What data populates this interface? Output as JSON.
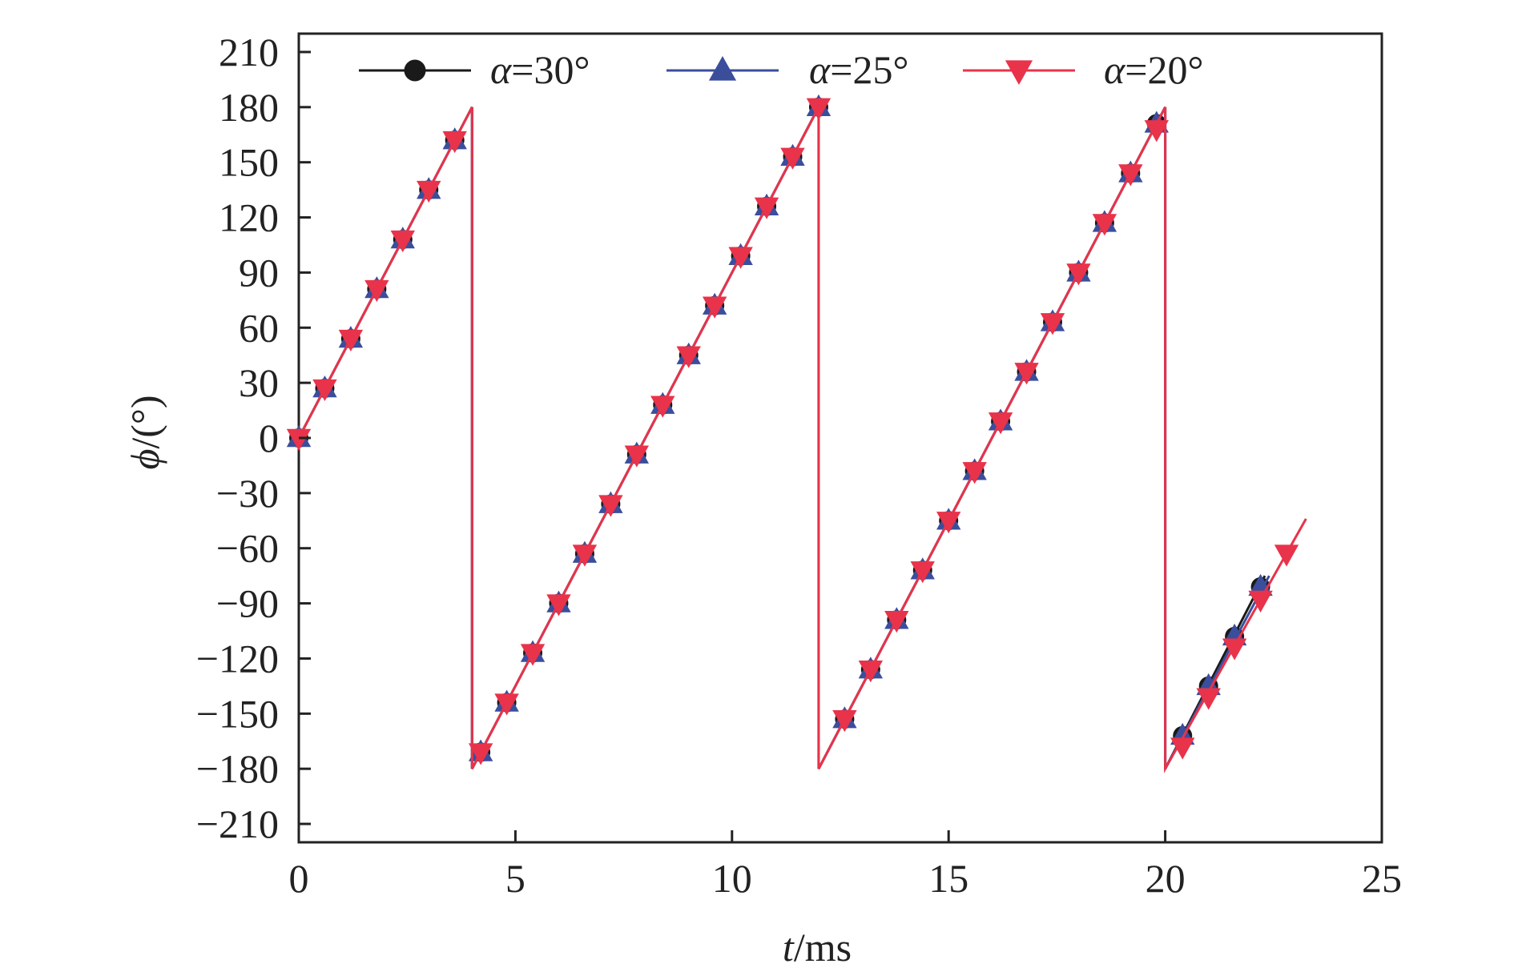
{
  "chart_data": {
    "type": "line",
    "title": "",
    "xlabel": {
      "var": "t",
      "unit": "/ms"
    },
    "ylabel": {
      "var": "ϕ",
      "unit": "/(°)"
    },
    "xlim": [
      0,
      25
    ],
    "ylim": [
      -220,
      220
    ],
    "xticks": [
      0,
      5,
      10,
      15,
      20,
      25
    ],
    "yticks": [
      210,
      180,
      150,
      120,
      90,
      60,
      30,
      0,
      -30,
      -60,
      -90,
      -120,
      -150,
      -180,
      -210
    ],
    "grid": false,
    "legend_position": "top",
    "series": [
      {
        "name": "α=30°",
        "name_var": "α",
        "name_rest": "=30°",
        "color": "#1a1a1a",
        "marker": "circle",
        "line": [
          [
            0,
            0
          ],
          [
            4.0,
            180
          ],
          [
            4.0,
            -180
          ],
          [
            12.0,
            180
          ],
          [
            12.0,
            -180
          ],
          [
            20.0,
            180
          ],
          [
            20.0,
            -180
          ],
          [
            22.3,
            -75
          ]
        ],
        "markers": [
          [
            0,
            0
          ],
          [
            0.6,
            27
          ],
          [
            1.2,
            54
          ],
          [
            1.8,
            81
          ],
          [
            2.4,
            108
          ],
          [
            3.0,
            135
          ],
          [
            3.6,
            162
          ],
          [
            4.2,
            -171
          ],
          [
            4.8,
            -144
          ],
          [
            5.4,
            -117
          ],
          [
            6.0,
            -90
          ],
          [
            6.6,
            -63
          ],
          [
            7.2,
            -36
          ],
          [
            7.8,
            -9
          ],
          [
            8.4,
            18
          ],
          [
            9.0,
            45
          ],
          [
            9.6,
            72
          ],
          [
            10.2,
            99
          ],
          [
            10.8,
            126
          ],
          [
            11.4,
            153
          ],
          [
            12.0,
            180
          ],
          [
            12.6,
            -153
          ],
          [
            13.2,
            -126
          ],
          [
            13.8,
            -99
          ],
          [
            14.4,
            -72
          ],
          [
            15.0,
            -45
          ],
          [
            15.6,
            -18
          ],
          [
            16.2,
            9
          ],
          [
            16.8,
            36
          ],
          [
            17.4,
            63
          ],
          [
            18.0,
            90
          ],
          [
            18.6,
            117
          ],
          [
            19.2,
            144
          ],
          [
            19.8,
            171
          ],
          [
            20.4,
            -162
          ],
          [
            21.0,
            -135
          ],
          [
            21.6,
            -108
          ],
          [
            22.2,
            -81
          ]
        ]
      },
      {
        "name": "α=25°",
        "name_var": "α",
        "name_rest": "=25°",
        "color": "#3a4e9c",
        "marker": "triangle-up",
        "line": [
          [
            0,
            0
          ],
          [
            4.0,
            180
          ],
          [
            4.0,
            -180
          ],
          [
            12.0,
            180
          ],
          [
            12.0,
            -180
          ],
          [
            20.0,
            180
          ],
          [
            20.0,
            -180
          ],
          [
            22.4,
            -75
          ]
        ],
        "markers": [
          [
            0,
            0
          ],
          [
            0.6,
            27
          ],
          [
            1.2,
            54
          ],
          [
            1.8,
            81
          ],
          [
            2.4,
            108
          ],
          [
            3.0,
            135
          ],
          [
            3.6,
            162
          ],
          [
            4.2,
            -171
          ],
          [
            4.8,
            -144
          ],
          [
            5.4,
            -117
          ],
          [
            6.0,
            -90
          ],
          [
            6.6,
            -63
          ],
          [
            7.2,
            -36
          ],
          [
            7.8,
            -9
          ],
          [
            8.4,
            18
          ],
          [
            9.0,
            45
          ],
          [
            9.6,
            72
          ],
          [
            10.2,
            99
          ],
          [
            10.8,
            126
          ],
          [
            11.4,
            153
          ],
          [
            12.0,
            180
          ],
          [
            12.6,
            -153
          ],
          [
            13.2,
            -126
          ],
          [
            13.8,
            -99
          ],
          [
            14.4,
            -72
          ],
          [
            15.0,
            -45
          ],
          [
            15.6,
            -18
          ],
          [
            16.2,
            9
          ],
          [
            16.8,
            36
          ],
          [
            17.4,
            63
          ],
          [
            18.0,
            90
          ],
          [
            18.6,
            117
          ],
          [
            19.2,
            144
          ],
          [
            19.8,
            171
          ],
          [
            20.4,
            -162
          ],
          [
            21.0,
            -135
          ],
          [
            21.6,
            -108
          ],
          [
            22.2,
            -81
          ]
        ]
      },
      {
        "name": "α=20°",
        "name_var": "α",
        "name_rest": "=20°",
        "color": "#e8334a",
        "marker": "triangle-down",
        "line": [
          [
            0,
            0
          ],
          [
            4.0,
            180
          ],
          [
            4.0,
            -180
          ],
          [
            12.0,
            180
          ],
          [
            12.0,
            -180
          ],
          [
            20.0,
            180
          ],
          [
            20.0,
            -180
          ],
          [
            23.25,
            -44
          ]
        ],
        "markers": [
          [
            0,
            0
          ],
          [
            0.6,
            27
          ],
          [
            1.2,
            54
          ],
          [
            1.8,
            81
          ],
          [
            2.4,
            108
          ],
          [
            3.0,
            135
          ],
          [
            3.6,
            162
          ],
          [
            4.2,
            -171
          ],
          [
            4.8,
            -144
          ],
          [
            5.4,
            -117
          ],
          [
            6.0,
            -90
          ],
          [
            6.6,
            -63
          ],
          [
            7.2,
            -36
          ],
          [
            7.8,
            -9
          ],
          [
            8.4,
            18
          ],
          [
            9.0,
            45
          ],
          [
            9.6,
            72
          ],
          [
            10.2,
            99
          ],
          [
            10.8,
            126
          ],
          [
            11.4,
            153
          ],
          [
            12.0,
            180
          ],
          [
            12.6,
            -153
          ],
          [
            13.2,
            -126
          ],
          [
            13.8,
            -99
          ],
          [
            14.4,
            -72
          ],
          [
            15.0,
            -45
          ],
          [
            15.6,
            -18
          ],
          [
            16.2,
            9
          ],
          [
            16.8,
            36
          ],
          [
            17.4,
            63
          ],
          [
            18.0,
            90
          ],
          [
            18.6,
            117
          ],
          [
            19.2,
            144
          ],
          [
            19.8,
            168
          ],
          [
            20.4,
            -168
          ],
          [
            21.0,
            -141
          ],
          [
            21.6,
            -114
          ],
          [
            22.2,
            -88
          ],
          [
            22.8,
            -63
          ]
        ]
      }
    ]
  }
}
